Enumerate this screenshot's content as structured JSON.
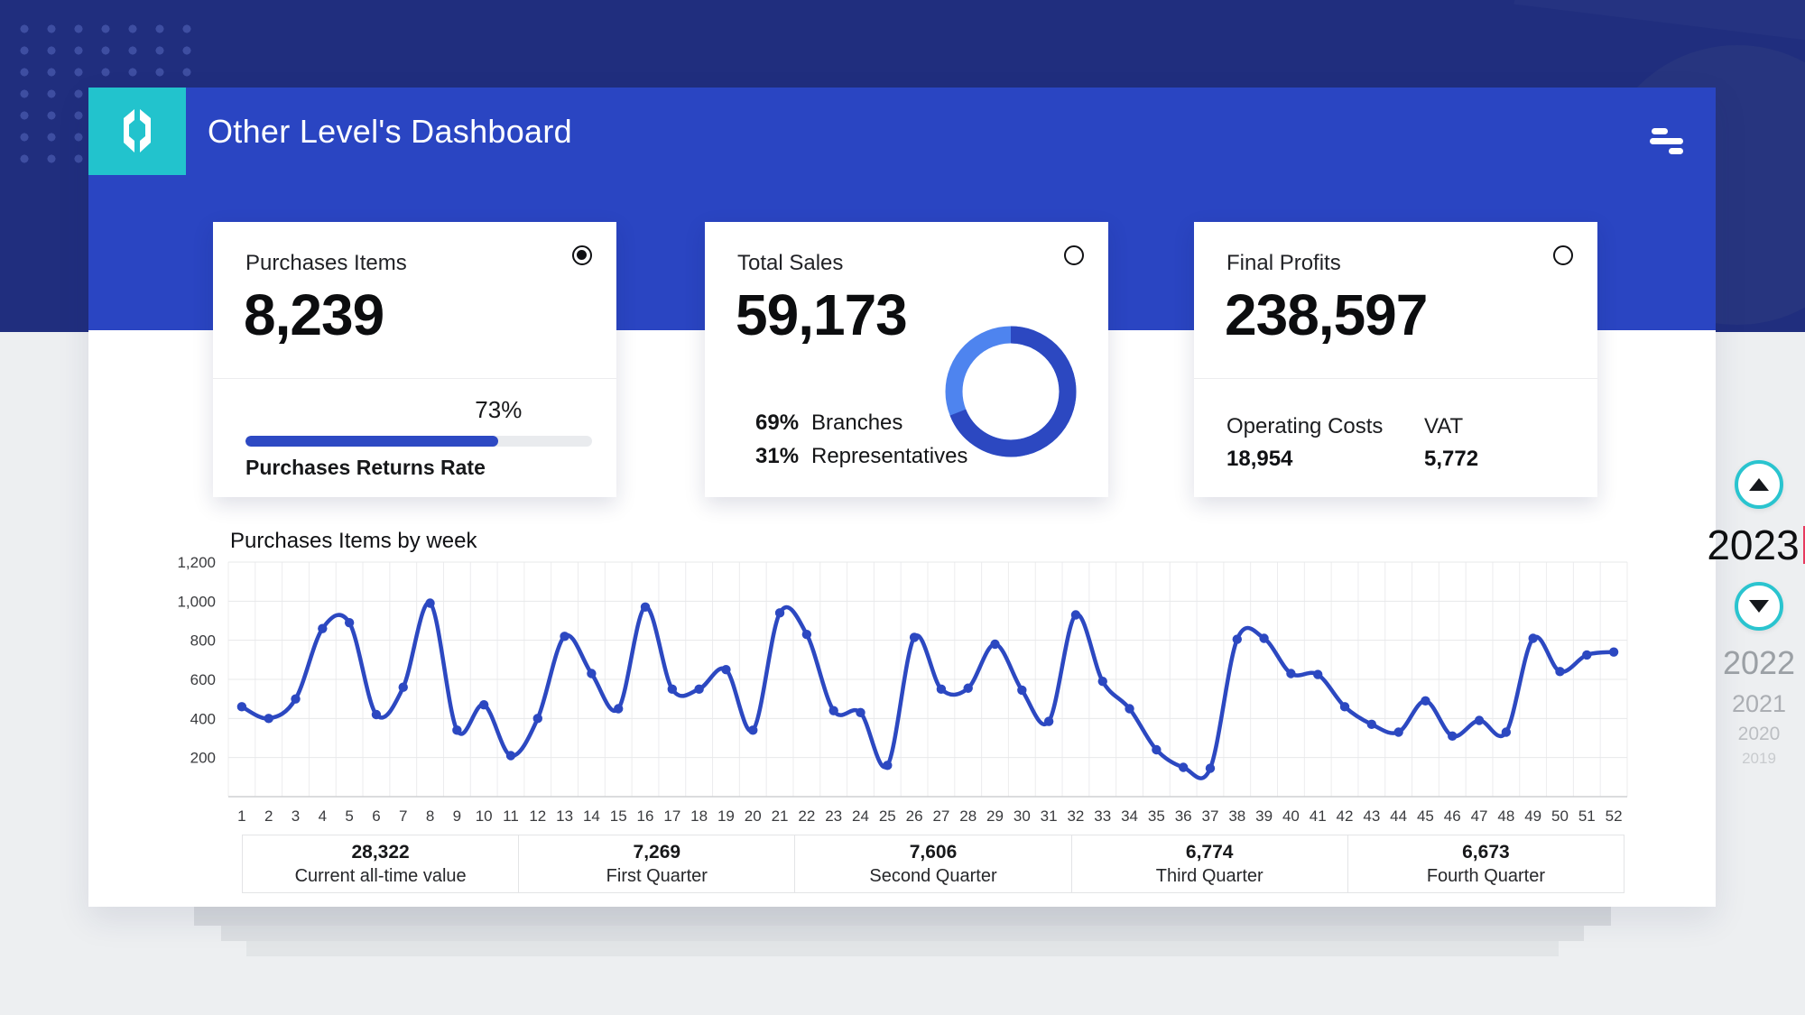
{
  "header": {
    "title": "Other Level's Dashboard",
    "logo_color": "#22c3cd",
    "band_color": "#2a45c2"
  },
  "cards": [
    {
      "title": "Purchases Items",
      "value": "8,239",
      "selected": true,
      "progress": {
        "percent": "73%",
        "percent_value": 73,
        "label": "Purchases Returns Rate",
        "fill_color": "#2d49c3"
      }
    },
    {
      "title": "Total Sales",
      "value": "59,173",
      "selected": false
    },
    {
      "title": "Final Profits",
      "value": "238,597",
      "selected": false,
      "stats": [
        {
          "label": "Operating Costs",
          "value": "18,954"
        },
        {
          "label": "VAT",
          "value": "5,772"
        }
      ]
    }
  ],
  "chart_data": [
    {
      "type": "line",
      "title": "Purchases Items by week",
      "xlabel": "week",
      "ylabel": "",
      "x": [
        1,
        2,
        3,
        4,
        5,
        6,
        7,
        8,
        9,
        10,
        11,
        12,
        13,
        14,
        15,
        16,
        17,
        18,
        19,
        20,
        21,
        22,
        23,
        24,
        25,
        26,
        27,
        28,
        29,
        30,
        31,
        32,
        33,
        34,
        35,
        36,
        37,
        38,
        39,
        40,
        41,
        42,
        43,
        44,
        45,
        46,
        47,
        48,
        49,
        50,
        51,
        52
      ],
      "values": [
        460,
        400,
        500,
        860,
        890,
        420,
        560,
        990,
        340,
        470,
        210,
        400,
        820,
        630,
        450,
        970,
        550,
        550,
        650,
        340,
        940,
        830,
        440,
        430,
        160,
        815,
        550,
        555,
        780,
        545,
        385,
        930,
        590,
        450,
        240,
        150,
        145,
        805,
        810,
        630,
        625,
        460,
        370,
        330,
        490,
        310,
        390,
        330,
        810,
        640,
        725,
        740
      ],
      "ylim": [
        0,
        1200
      ],
      "yticks": [
        200,
        400,
        600,
        800,
        1000,
        1200
      ],
      "grid": true,
      "legend_position": "none",
      "line_color": "#2c48c1",
      "point_color": "#2c48c1",
      "gridline_color": "#ececee"
    },
    {
      "type": "pie",
      "donut": true,
      "title": "Total Sales split",
      "labels": [
        "Branches",
        "Representatives"
      ],
      "percents": [
        "69%",
        "31%"
      ],
      "values": [
        69,
        31
      ],
      "colors": [
        "#2c48c1",
        "#4e84ef"
      ]
    }
  ],
  "summary": [
    {
      "value": "28,322",
      "label": "Current all-time value"
    },
    {
      "value": "7,269",
      "label": "First Quarter"
    },
    {
      "value": "7,606",
      "label": "Second Quarter"
    },
    {
      "value": "6,774",
      "label": "Third Quarter"
    },
    {
      "value": "6,673",
      "label": "Fourth Quarter"
    }
  ],
  "year_selector": {
    "selected": "2023",
    "previous_years": [
      "2022",
      "2021",
      "2020",
      "2019"
    ],
    "accent_color": "#2ac4cf",
    "marker_color": "#e73b5f"
  }
}
